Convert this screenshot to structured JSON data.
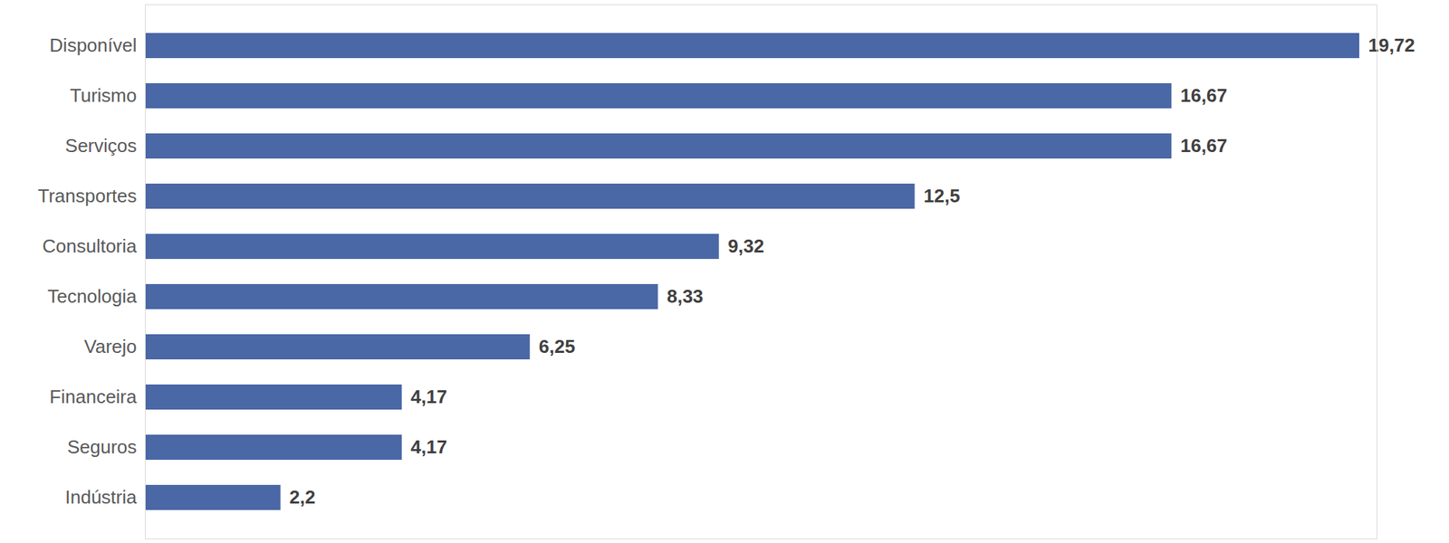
{
  "chart_data": {
    "type": "bar",
    "orientation": "horizontal",
    "categories": [
      "Disponível",
      "Turismo",
      "Serviços",
      "Transportes",
      "Consultoria",
      "Tecnologia",
      "Varejo",
      "Financeira",
      "Seguros",
      "Indústria"
    ],
    "values": [
      19.72,
      16.67,
      16.67,
      12.5,
      9.32,
      8.33,
      6.25,
      4.17,
      4.17,
      2.2
    ],
    "value_labels": [
      "19,72",
      "16,67",
      "16,67",
      "12,5",
      "9,32",
      "8,33",
      "6,25",
      "4,17",
      "4,17",
      "2,2"
    ],
    "color": "#4a67a6",
    "xlim": [
      0,
      20
    ],
    "xticks": [],
    "data_labels": true,
    "tick_labels": "y",
    "grid": false
  }
}
